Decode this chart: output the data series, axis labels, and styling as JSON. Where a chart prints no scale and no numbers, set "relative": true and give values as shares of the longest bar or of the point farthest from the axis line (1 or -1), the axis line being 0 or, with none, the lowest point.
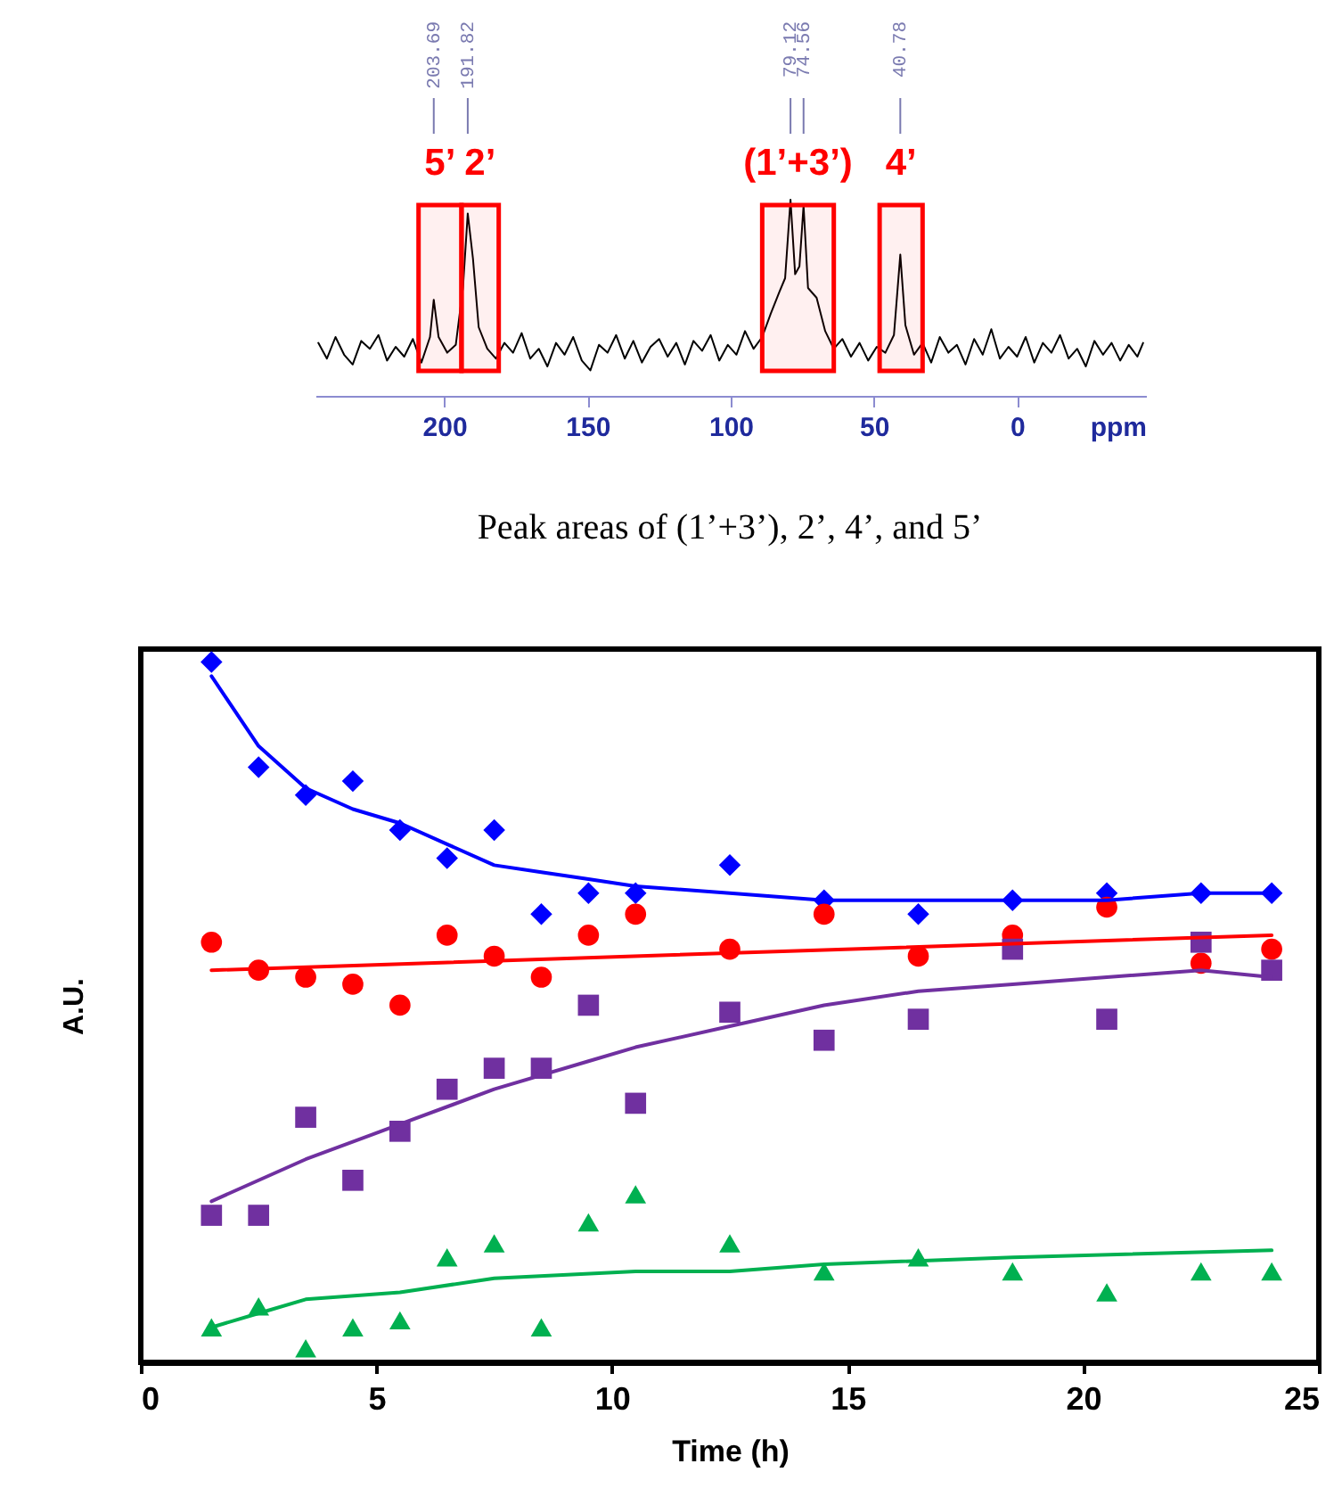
{
  "chart_data": [
    {
      "type": "line",
      "relative": true,
      "color": "#000000",
      "xlabel": "ppm",
      "xlim": [
        245,
        -45
      ],
      "xticks": [
        200,
        150,
        100,
        50,
        0
      ],
      "grid": false,
      "x": [
        244,
        241,
        238,
        235,
        232,
        229,
        226,
        223,
        220,
        217,
        214,
        211,
        208,
        205,
        203.69,
        202,
        199,
        196,
        193.5,
        191.82,
        190,
        188,
        185,
        182,
        179,
        176,
        173,
        170,
        167,
        164,
        161,
        158,
        155,
        152,
        149,
        146,
        143,
        140,
        137,
        134,
        131,
        128,
        125,
        122,
        119,
        116,
        113,
        110,
        107,
        104,
        101,
        98,
        95,
        92,
        89,
        86,
        83,
        81,
        79.12,
        77.5,
        76,
        74.56,
        73,
        70,
        67,
        64,
        61,
        58,
        55,
        52,
        49,
        46,
        43,
        40.78,
        39,
        36,
        33,
        30,
        27,
        24,
        21,
        18,
        15,
        12,
        9,
        6,
        3,
        0,
        -3,
        -6,
        -9,
        -12,
        -15,
        -18,
        -21,
        -24,
        -27,
        -30,
        -33,
        -36,
        -39,
        -42,
        -44
      ],
      "values": [
        0.27,
        0.19,
        0.3,
        0.21,
        0.16,
        0.28,
        0.24,
        0.31,
        0.18,
        0.25,
        0.2,
        0.29,
        0.17,
        0.3,
        0.49,
        0.3,
        0.22,
        0.26,
        0.55,
        0.93,
        0.7,
        0.35,
        0.24,
        0.19,
        0.27,
        0.22,
        0.32,
        0.19,
        0.24,
        0.15,
        0.27,
        0.21,
        0.3,
        0.18,
        0.13,
        0.26,
        0.22,
        0.31,
        0.19,
        0.28,
        0.17,
        0.25,
        0.29,
        0.2,
        0.27,
        0.16,
        0.28,
        0.23,
        0.31,
        0.18,
        0.26,
        0.21,
        0.33,
        0.24,
        0.3,
        0.42,
        0.53,
        0.6,
        1.0,
        0.62,
        0.66,
        0.97,
        0.55,
        0.5,
        0.33,
        0.24,
        0.29,
        0.2,
        0.27,
        0.18,
        0.25,
        0.22,
        0.31,
        0.72,
        0.36,
        0.21,
        0.27,
        0.17,
        0.3,
        0.22,
        0.26,
        0.16,
        0.29,
        0.21,
        0.34,
        0.19,
        0.25,
        0.2,
        0.3,
        0.17,
        0.27,
        0.22,
        0.31,
        0.19,
        0.24,
        0.15,
        0.28,
        0.21,
        0.27,
        0.18,
        0.26,
        0.2,
        0.27
      ],
      "bands": [
        {
          "axis": "x",
          "from": 209,
          "to": 194,
          "label": "5’",
          "color": "#ff0000"
        },
        {
          "axis": "x",
          "from": 194,
          "to": 181,
          "label": "2’",
          "color": "#ff0000"
        },
        {
          "axis": "x",
          "from": 89,
          "to": 64,
          "label": "(1’+3’)",
          "color": "#ff0000"
        },
        {
          "axis": "x",
          "from": 48,
          "to": 33,
          "label": "4’",
          "color": "#ff0000"
        }
      ],
      "annotations": [
        {
          "text": "203.69",
          "x": 203.69
        },
        {
          "text": "191.82",
          "x": 191.82
        },
        {
          "text": "79.12",
          "x": 79.12
        },
        {
          "text": "74.56",
          "x": 74.56
        },
        {
          "text": "40.78",
          "x": 40.78
        }
      ]
    },
    {
      "type": "scatter",
      "title": "Peak areas of (1’+3’), 2’, 4’, and 5’",
      "xlabel": "Time (h)",
      "ylabel": "A.U.",
      "relative": true,
      "xlim": [
        0,
        25
      ],
      "xticks": [
        0,
        5,
        10,
        15,
        20,
        25
      ],
      "grid": false,
      "x": [
        1.5,
        2.5,
        3.5,
        4.5,
        5.5,
        6.5,
        7.5,
        8.5,
        9.5,
        10.5,
        12.5,
        14.5,
        16.5,
        18.5,
        20.5,
        22.5,
        24
      ],
      "series": [
        {
          "color": "#0000ff",
          "marker": "diamond",
          "values": [
            1,
            0.85,
            0.81,
            0.83,
            0.76,
            0.72,
            0.76,
            0.64,
            0.67,
            0.67,
            0.71,
            0.66,
            0.64,
            0.66,
            0.67,
            0.67,
            0.67
          ]
        },
        {
          "color": "#ff0000",
          "marker": "circle",
          "values": [
            0.6,
            0.56,
            0.55,
            0.54,
            0.51,
            0.61,
            0.58,
            0.55,
            0.61,
            0.64,
            0.59,
            0.64,
            0.58,
            0.61,
            0.65,
            0.57,
            0.59
          ]
        },
        {
          "color": "#7030a0",
          "marker": "square",
          "values": [
            0.21,
            0.21,
            0.35,
            0.26,
            0.33,
            0.39,
            0.42,
            0.42,
            0.51,
            0.37,
            0.5,
            0.46,
            0.49,
            0.59,
            0.49,
            0.6,
            0.56
          ]
        },
        {
          "color": "#00b050",
          "marker": "triangle",
          "values": [
            0.05,
            0.08,
            0.02,
            0.05,
            0.06,
            0.15,
            0.17,
            0.05,
            0.2,
            0.24,
            0.17,
            0.13,
            0.15,
            0.13,
            0.1,
            0.13,
            0.13
          ]
        },
        {
          "type": "line",
          "color": "#0000ff",
          "marker": "none",
          "x": [
            1.5,
            2.5,
            3.5,
            4.5,
            5.5,
            6.5,
            7.5,
            8.5,
            9.5,
            10.5,
            12.5,
            14.5,
            16.5,
            20.5,
            22.5,
            24
          ],
          "values": [
            0.98,
            0.88,
            0.82,
            0.79,
            0.77,
            0.74,
            0.71,
            0.7,
            0.69,
            0.68,
            0.67,
            0.66,
            0.66,
            0.66,
            0.67,
            0.67
          ]
        },
        {
          "type": "line",
          "color": "#ff0000",
          "marker": "none",
          "x": [
            1.5,
            24
          ],
          "values": [
            0.56,
            0.61
          ]
        },
        {
          "type": "line",
          "color": "#7030a0",
          "marker": "none",
          "x": [
            1.5,
            3.5,
            5.5,
            7.5,
            9.5,
            10.5,
            12.5,
            14.5,
            16.5,
            18.5,
            20.5,
            22.5,
            24
          ],
          "values": [
            0.23,
            0.29,
            0.34,
            0.39,
            0.43,
            0.45,
            0.48,
            0.51,
            0.53,
            0.54,
            0.55,
            0.56,
            0.55
          ]
        },
        {
          "type": "line",
          "color": "#00b050",
          "marker": "none",
          "x": [
            1.5,
            2.5,
            3.5,
            5.5,
            7.5,
            10.5,
            12.5,
            14.5,
            18.5,
            24
          ],
          "values": [
            0.05,
            0.07,
            0.09,
            0.1,
            0.12,
            0.13,
            0.13,
            0.14,
            0.15,
            0.16
          ]
        }
      ]
    }
  ]
}
